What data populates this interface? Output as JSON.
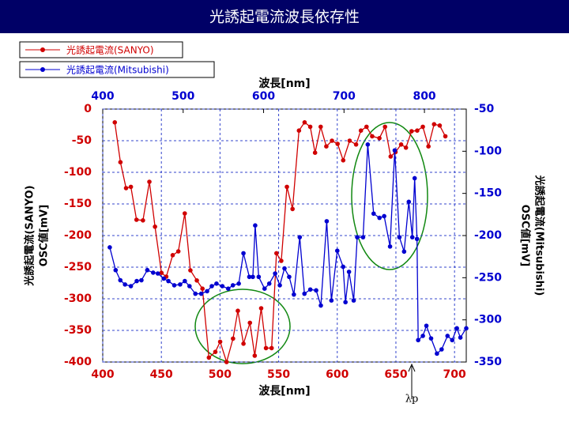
{
  "chart_data": {
    "type": "line",
    "title": "光誘起電流波長依存性",
    "x_label": "波長[nm]",
    "x2_label": "波長[nm]",
    "y_label": [
      "光誘起電流(SANYO)",
      "OSC値[mV]"
    ],
    "y2_label": [
      "光誘起電流(Mitsubishi)",
      "OSC値[mV]"
    ],
    "annotation": "λp",
    "xlim": [
      400,
      710
    ],
    "xticks": [
      400,
      450,
      500,
      550,
      600,
      650,
      700
    ],
    "x2lim": [
      400,
      852
    ],
    "x2ticks": [
      400,
      500,
      600,
      700,
      800
    ],
    "ylim": [
      -400,
      0
    ],
    "yticks": [
      0,
      -50,
      -100,
      -150,
      -200,
      -250,
      -300,
      -350,
      -400
    ],
    "y2lim": [
      -350,
      -50
    ],
    "y2ticks": [
      -50,
      -100,
      -150,
      -200,
      -250,
      -300,
      -350
    ],
    "grid": true,
    "series": [
      {
        "name": "光誘起電流(SANYO)",
        "color": "#d00000",
        "xaxis": "x2",
        "x": [
          415,
          422,
          429,
          435,
          442,
          450,
          458,
          465,
          473,
          479,
          487,
          494,
          502,
          509,
          517,
          524,
          532,
          540,
          546,
          554,
          562,
          568,
          575,
          583,
          589,
          597,
          603,
          610,
          616,
          622,
          629,
          636,
          644,
          651,
          658,
          664,
          671,
          678,
          685,
          692,
          699,
          707,
          715,
          721,
          728,
          735,
          744,
          751,
          758,
          764,
          771,
          777,
          784,
          791,
          798,
          805,
          812,
          819,
          826
        ],
        "values": [
          -21,
          -84,
          -125,
          -123,
          -175,
          -176,
          -115,
          -186,
          -259,
          -265,
          -231,
          -225,
          -165,
          -255,
          -271,
          -284,
          -393,
          -384,
          -368,
          -400,
          -363,
          -319,
          -371,
          -338,
          -390,
          -315,
          -378,
          -378,
          -228,
          -240,
          -123,
          -158,
          -34,
          -21,
          -28,
          -69,
          -28,
          -59,
          -50,
          -55,
          -81,
          -50,
          -56,
          -34,
          -28,
          -43,
          -46,
          -28,
          -75,
          -68,
          -56,
          -61,
          -35,
          -34,
          -28,
          -59,
          -24,
          -26,
          -43
        ]
      },
      {
        "name": "光誘起電流(Mitsubishi)",
        "color": "#0000d0",
        "axis": "y2",
        "x": [
          406,
          411,
          415,
          419,
          424,
          429,
          433,
          438,
          443,
          447,
          452,
          456,
          461,
          466,
          470,
          474,
          479,
          484,
          489,
          493,
          497,
          502,
          507,
          511,
          516,
          520,
          525,
          528,
          530,
          533,
          538,
          542,
          547,
          551,
          555,
          559,
          563,
          568,
          572,
          577,
          582,
          586,
          591,
          595,
          600,
          605,
          607,
          610,
          614,
          617,
          622,
          626,
          631,
          636,
          640,
          645,
          649,
          653,
          657,
          661,
          664,
          666,
          668,
          669,
          673,
          676,
          680,
          685,
          689,
          694,
          698,
          702,
          705,
          710
        ],
        "values": [
          -214,
          -241,
          -253,
          -258,
          -260,
          -254,
          -253,
          -241,
          -244,
          -245,
          -251,
          -254,
          -259,
          -258,
          -254,
          -260,
          -269,
          -269,
          -266,
          -260,
          -257,
          -260,
          -263,
          -259,
          -257,
          -221,
          -249,
          -249,
          -188,
          -249,
          -263,
          -257,
          -245,
          -259,
          -239,
          -249,
          -270,
          -202,
          -269,
          -264,
          -265,
          -283,
          -183,
          -277,
          -218,
          -237,
          -279,
          -243,
          -277,
          -202,
          -202,
          -92,
          -174,
          -179,
          -177,
          -213,
          -99,
          -202,
          -219,
          -160,
          -202,
          -132,
          -204,
          -324,
          -319,
          -307,
          -322,
          -340,
          -335,
          -319,
          -324,
          -310,
          -321,
          -310
        ]
      }
    ]
  }
}
